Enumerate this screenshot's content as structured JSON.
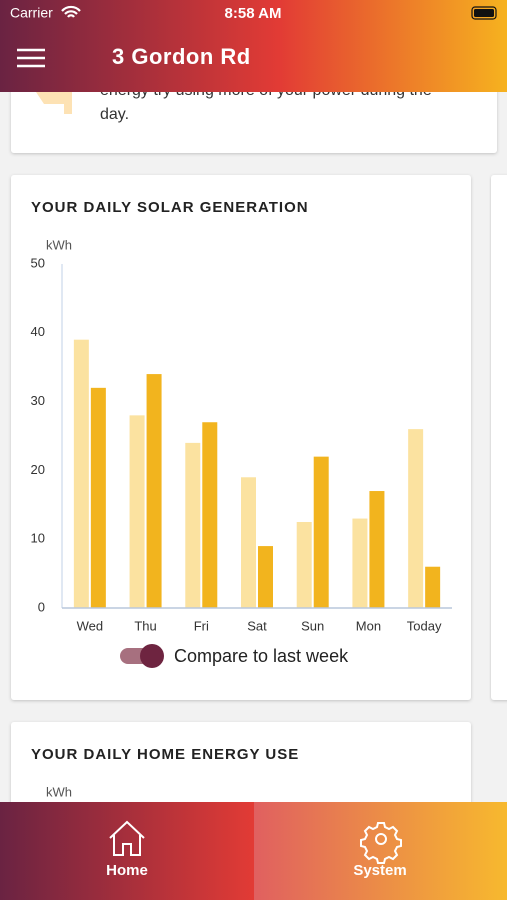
{
  "status_bar": {
    "carrier": "Carrier",
    "time": "8:58 AM"
  },
  "header": {
    "title": "3 Gordon Rd"
  },
  "tip_card": {
    "lines": [
      "energy try using more of your power during the",
      "day."
    ]
  },
  "chart_data": {
    "type": "bar",
    "title": "YOUR DAILY SOLAR GENERATION",
    "y_label": "kWh",
    "categories": [
      "Wed",
      "Thu",
      "Fri",
      "Sat",
      "Sun",
      "Mon",
      "Today"
    ],
    "series": [
      {
        "color": "#fbe2a0",
        "values": [
          39,
          28,
          24,
          19,
          12.5,
          13,
          26
        ]
      },
      {
        "color": "#f2b41e",
        "values": [
          32,
          34,
          27,
          9,
          22,
          17,
          6
        ]
      }
    ],
    "ylim": [
      0,
      50
    ],
    "yticks": [
      0,
      10,
      20,
      30,
      40,
      50
    ],
    "grid": false,
    "toggle_label": "Compare to last week"
  },
  "next_card": {
    "title": "YOUR DAILY HOME ENERGY USE",
    "y_label": "kWh"
  },
  "tab_bar": {
    "tabs": [
      "Home",
      "System"
    ]
  }
}
